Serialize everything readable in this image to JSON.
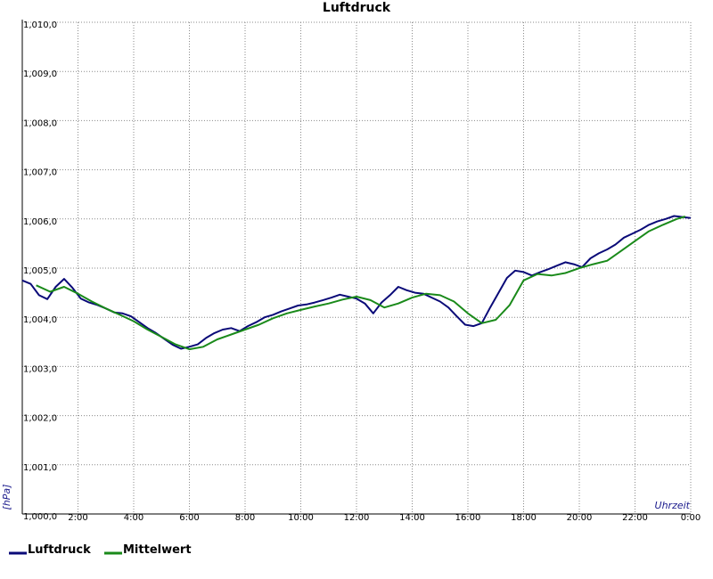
{
  "chart_data": {
    "type": "line",
    "title": "Luftdruck",
    "xlabel": "Uhrzeit",
    "ylabel": "[hPa]",
    "xlim": [
      0,
      24
    ],
    "ylim": [
      1000.0,
      1010.0
    ],
    "grid": true,
    "legend_position": "bottom-left",
    "x_ticks": [
      {
        "x": 2,
        "label": "2:00"
      },
      {
        "x": 4,
        "label": "4:00"
      },
      {
        "x": 6,
        "label": "6:00"
      },
      {
        "x": 8,
        "label": "8:00"
      },
      {
        "x": 10,
        "label": "10:00"
      },
      {
        "x": 12,
        "label": "12:00"
      },
      {
        "x": 14,
        "label": "14:00"
      },
      {
        "x": 16,
        "label": "16:00"
      },
      {
        "x": 18,
        "label": "18:00"
      },
      {
        "x": 20,
        "label": "20:00"
      },
      {
        "x": 22,
        "label": "22:00"
      },
      {
        "x": 24,
        "label": "0:00"
      }
    ],
    "y_ticks": [
      {
        "y": 1000.0,
        "label": "1,000,0"
      },
      {
        "y": 1001.0,
        "label": "1,001,0"
      },
      {
        "y": 1002.0,
        "label": "1,002,0"
      },
      {
        "y": 1003.0,
        "label": "1,003,0"
      },
      {
        "y": 1004.0,
        "label": "1,004,0"
      },
      {
        "y": 1005.0,
        "label": "1,005,0"
      },
      {
        "y": 1006.0,
        "label": "1,006,0"
      },
      {
        "y": 1007.0,
        "label": "1,007,0"
      },
      {
        "y": 1008.0,
        "label": "1,008,0"
      },
      {
        "y": 1009.0,
        "label": "1,009,0"
      },
      {
        "y": 1010.0,
        "label": "1,010,0"
      }
    ],
    "series": [
      {
        "name": "Luftdruck",
        "color": "#0a0a78",
        "x": [
          0.0,
          0.3,
          0.6,
          0.9,
          1.2,
          1.5,
          1.8,
          2.1,
          2.4,
          2.7,
          3.0,
          3.3,
          3.6,
          3.9,
          4.2,
          4.5,
          4.8,
          5.1,
          5.4,
          5.7,
          6.0,
          6.3,
          6.6,
          6.9,
          7.2,
          7.5,
          7.8,
          8.1,
          8.4,
          8.7,
          9.0,
          9.3,
          9.6,
          9.9,
          10.2,
          10.5,
          10.8,
          11.1,
          11.4,
          11.7,
          12.0,
          12.3,
          12.6,
          12.9,
          13.2,
          13.5,
          13.8,
          14.1,
          14.4,
          14.7,
          15.0,
          15.3,
          15.6,
          15.9,
          16.2,
          16.5,
          16.8,
          17.1,
          17.4,
          17.7,
          18.0,
          18.3,
          18.6,
          18.9,
          19.2,
          19.5,
          19.8,
          20.1,
          20.4,
          20.7,
          21.0,
          21.3,
          21.6,
          21.9,
          22.2,
          22.5,
          22.8,
          23.1,
          23.4,
          23.7,
          24.0
        ],
        "values": [
          1004.75,
          1004.68,
          1004.45,
          1004.37,
          1004.62,
          1004.78,
          1004.6,
          1004.38,
          1004.3,
          1004.25,
          1004.18,
          1004.1,
          1004.08,
          1004.02,
          1003.9,
          1003.78,
          1003.68,
          1003.56,
          1003.44,
          1003.36,
          1003.4,
          1003.45,
          1003.58,
          1003.68,
          1003.75,
          1003.78,
          1003.72,
          1003.82,
          1003.9,
          1004.0,
          1004.05,
          1004.12,
          1004.18,
          1004.24,
          1004.26,
          1004.3,
          1004.35,
          1004.4,
          1004.46,
          1004.42,
          1004.38,
          1004.28,
          1004.08,
          1004.3,
          1004.45,
          1004.62,
          1004.55,
          1004.5,
          1004.48,
          1004.4,
          1004.32,
          1004.2,
          1004.02,
          1003.85,
          1003.82,
          1003.88,
          1004.2,
          1004.5,
          1004.8,
          1004.95,
          1004.92,
          1004.85,
          1004.92,
          1004.98,
          1005.05,
          1005.12,
          1005.08,
          1005.02,
          1005.2,
          1005.3,
          1005.38,
          1005.48,
          1005.62,
          1005.7,
          1005.78,
          1005.88,
          1005.95,
          1006.0,
          1006.06,
          1006.04,
          1006.02
        ]
      },
      {
        "name": "Mittelwert",
        "color": "#1a8a1a",
        "x": [
          0.5,
          1.0,
          1.5,
          2.0,
          2.5,
          3.0,
          3.5,
          4.0,
          4.5,
          5.0,
          5.5,
          6.0,
          6.5,
          7.0,
          7.5,
          8.0,
          8.5,
          9.0,
          9.5,
          10.0,
          10.5,
          11.0,
          11.5,
          12.0,
          12.5,
          13.0,
          13.5,
          14.0,
          14.5,
          15.0,
          15.5,
          16.0,
          16.5,
          17.0,
          17.5,
          18.0,
          18.5,
          19.0,
          19.5,
          20.0,
          20.5,
          21.0,
          21.5,
          22.0,
          22.5,
          23.0,
          23.5,
          23.8
        ],
        "values": [
          1004.65,
          1004.52,
          1004.62,
          1004.48,
          1004.32,
          1004.18,
          1004.05,
          1003.92,
          1003.75,
          1003.6,
          1003.45,
          1003.35,
          1003.4,
          1003.55,
          1003.65,
          1003.75,
          1003.85,
          1003.98,
          1004.08,
          1004.15,
          1004.22,
          1004.28,
          1004.36,
          1004.42,
          1004.35,
          1004.2,
          1004.28,
          1004.4,
          1004.48,
          1004.45,
          1004.32,
          1004.08,
          1003.88,
          1003.95,
          1004.25,
          1004.75,
          1004.88,
          1004.85,
          1004.9,
          1005.0,
          1005.08,
          1005.15,
          1005.35,
          1005.55,
          1005.75,
          1005.88,
          1006.0,
          1006.05
        ]
      }
    ]
  }
}
